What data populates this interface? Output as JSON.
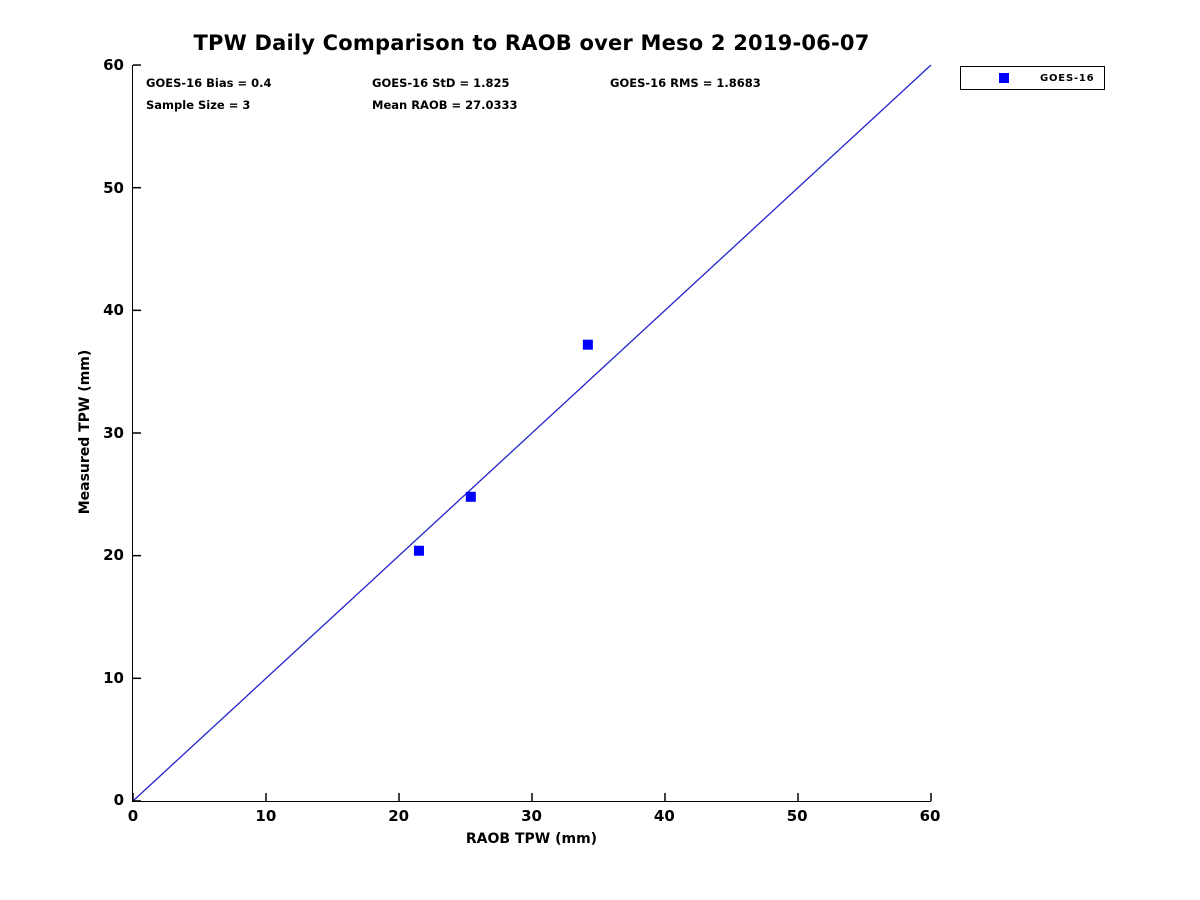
{
  "chart_data": {
    "type": "scatter",
    "title": "TPW Daily Comparison to RAOB over Meso 2 2019-06-07",
    "xlabel": "RAOB TPW (mm)",
    "ylabel": "Measured TPW (mm)",
    "xlim": [
      0,
      60
    ],
    "ylim": [
      0,
      60
    ],
    "xticks": [
      0,
      10,
      20,
      30,
      40,
      50,
      60
    ],
    "yticks": [
      0,
      10,
      20,
      30,
      40,
      50,
      60
    ],
    "grid": false,
    "colors": {
      "marker": "#0000ff",
      "reference_line": "#2222cc",
      "axis": "#000000",
      "text": "#000000",
      "background": "#ffffff"
    },
    "legend": {
      "position": "outside-top-right",
      "entries": [
        {
          "label": "GOES-16",
          "marker": "square",
          "color": "#0000ff"
        }
      ]
    },
    "series": [
      {
        "name": "GOES-16",
        "marker": "square",
        "marker_size": 10,
        "color": "#0000ff",
        "x": [
          21.5,
          25.4,
          34.2
        ],
        "y": [
          20.4,
          24.8,
          37.2
        ]
      }
    ],
    "reference_line": {
      "from": [
        0,
        0
      ],
      "to": [
        60,
        60
      ]
    },
    "stats": {
      "rows": [
        [
          "GOES-16 Bias = 0.4",
          "GOES-16 StD = 1.825",
          "GOES-16 RMS = 1.8683"
        ],
        [
          "Sample Size = 3",
          "Mean RAOB = 27.0333"
        ]
      ]
    }
  }
}
